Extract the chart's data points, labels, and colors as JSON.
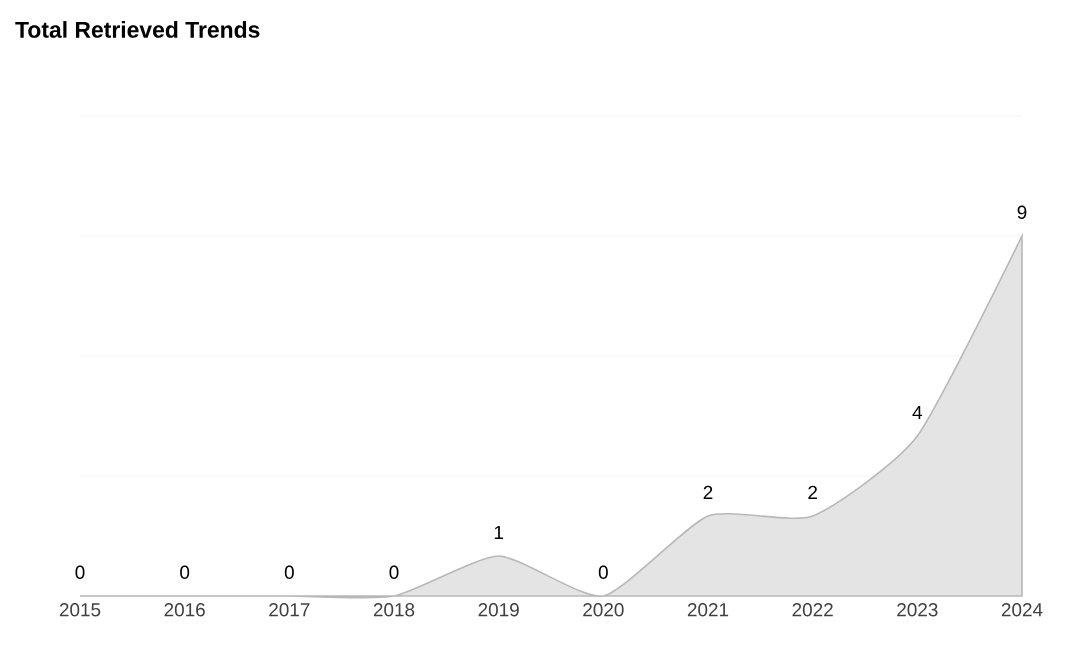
{
  "chart_data": {
    "type": "area",
    "title": "Total Retrieved Trends",
    "categories": [
      "2015",
      "2016",
      "2017",
      "2018",
      "2019",
      "2020",
      "2021",
      "2022",
      "2023",
      "2024"
    ],
    "values": [
      0,
      0,
      0,
      0,
      1,
      0,
      2,
      2,
      4,
      9
    ],
    "color": "#e4e4e4",
    "ylim": [
      0,
      12
    ],
    "yticks": [
      {
        "value": 0,
        "label": null
      },
      {
        "value": 3,
        "label": null
      },
      {
        "value": 6,
        "label": null
      },
      {
        "value": 9,
        "label": null
      },
      {
        "value": 12,
        "label": null
      }
    ],
    "tick_labels": "x",
    "grid": "y",
    "data_labels": true
  }
}
